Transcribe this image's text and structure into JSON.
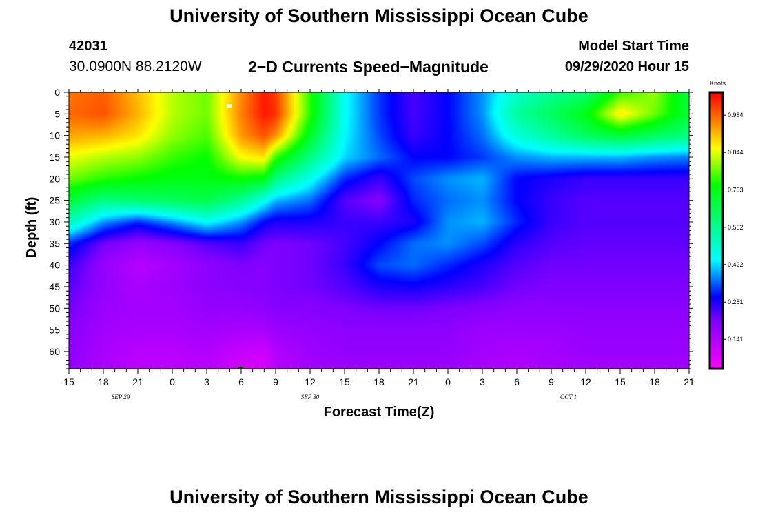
{
  "header": {
    "title": "University of Southern Mississippi Ocean Cube",
    "station_id": "42031",
    "coordinates": "30.0900N 88.2120W",
    "plot_title": "2−D Currents Speed−Magnitude",
    "start_label": "Model Start Time",
    "start_value": "09/29/2020 Hour 15"
  },
  "footer": {
    "title": "University of Southern Mississippi Ocean Cube"
  },
  "chart_data": {
    "type": "heatmap",
    "title": "2-D Currents Speed-Magnitude",
    "xlabel": "Forecast Time(Z)",
    "ylabel": "Depth (ft)",
    "x_hours_from_start": [
      0,
      54
    ],
    "x_ticks": [
      "15",
      "18",
      "21",
      "0",
      "3",
      "6",
      "9",
      "12",
      "15",
      "18",
      "21",
      "0",
      "3",
      "6",
      "9",
      "12",
      "15",
      "18",
      "21"
    ],
    "date_labels": [
      {
        "label": "SEP 29",
        "hour": 4.5
      },
      {
        "label": "SEP 30",
        "hour": 21
      },
      {
        "label": "OCT 1",
        "hour": 43.5
      }
    ],
    "y_range": [
      0,
      64
    ],
    "y_ticks": [
      0,
      5,
      10,
      15,
      20,
      25,
      30,
      35,
      40,
      45,
      50,
      55,
      60
    ],
    "colorbar": {
      "unit": "Knots",
      "range": [
        0.03,
        1.07
      ],
      "tick_values": [
        0.984,
        0.844,
        0.703,
        0.562,
        0.422,
        0.281,
        0.141
      ],
      "tick_labels": [
        "0.984",
        "0.844",
        "0.703",
        "0.562",
        "0.422",
        "0.281",
        "0.141"
      ],
      "stops": [
        {
          "v": 0.03,
          "color": "#ff00ff"
        },
        {
          "v": 0.21,
          "color": "#8000ff"
        },
        {
          "v": 0.3,
          "color": "#0000ff"
        },
        {
          "v": 0.44,
          "color": "#00ffff"
        },
        {
          "v": 0.58,
          "color": "#00ff80"
        },
        {
          "v": 0.72,
          "color": "#00ff00"
        },
        {
          "v": 0.86,
          "color": "#ffff00"
        },
        {
          "v": 0.96,
          "color": "#ff8000"
        },
        {
          "v": 1.07,
          "color": "#ff0000"
        }
      ]
    },
    "depth_levels": [
      0,
      5,
      10,
      15,
      20,
      25,
      30,
      35,
      40,
      45,
      50,
      55,
      60,
      64
    ],
    "time_hours": [
      0,
      3,
      6,
      9,
      12,
      15,
      17,
      18,
      21,
      24,
      27,
      30,
      33,
      36,
      39,
      42,
      45,
      48,
      51,
      54
    ],
    "speed_knots": [
      [
        0.97,
        0.99,
        0.91,
        0.82,
        0.78,
        0.95,
        1.05,
        1.02,
        0.74,
        0.45,
        0.33,
        0.25,
        0.3,
        0.38,
        0.5,
        0.56,
        0.6,
        0.75,
        0.8,
        0.65
      ],
      [
        0.98,
        1.0,
        0.92,
        0.82,
        0.78,
        0.96,
        1.05,
        1.03,
        0.74,
        0.45,
        0.33,
        0.25,
        0.3,
        0.38,
        0.55,
        0.62,
        0.7,
        0.88,
        0.78,
        0.66
      ],
      [
        0.93,
        0.92,
        0.88,
        0.8,
        0.76,
        0.94,
        1.0,
        0.95,
        0.68,
        0.44,
        0.34,
        0.26,
        0.3,
        0.36,
        0.48,
        0.55,
        0.62,
        0.66,
        0.62,
        0.58
      ],
      [
        0.85,
        0.82,
        0.8,
        0.75,
        0.72,
        0.86,
        0.88,
        0.75,
        0.58,
        0.42,
        0.36,
        0.3,
        0.3,
        0.33,
        0.38,
        0.4,
        0.4,
        0.4,
        0.38,
        0.37
      ],
      [
        0.78,
        0.74,
        0.72,
        0.7,
        0.7,
        0.72,
        0.7,
        0.58,
        0.46,
        0.32,
        0.26,
        0.34,
        0.38,
        0.4,
        0.3,
        0.28,
        0.26,
        0.26,
        0.26,
        0.26
      ],
      [
        0.66,
        0.58,
        0.6,
        0.62,
        0.64,
        0.56,
        0.46,
        0.4,
        0.36,
        0.24,
        0.2,
        0.32,
        0.36,
        0.38,
        0.3,
        0.26,
        0.24,
        0.24,
        0.24,
        0.24
      ],
      [
        0.52,
        0.38,
        0.32,
        0.38,
        0.45,
        0.38,
        0.3,
        0.28,
        0.28,
        0.26,
        0.26,
        0.28,
        0.38,
        0.4,
        0.32,
        0.26,
        0.24,
        0.24,
        0.24,
        0.24
      ],
      [
        0.32,
        0.22,
        0.18,
        0.2,
        0.24,
        0.26,
        0.22,
        0.21,
        0.22,
        0.25,
        0.3,
        0.36,
        0.38,
        0.34,
        0.27,
        0.24,
        0.23,
        0.23,
        0.23,
        0.23
      ],
      [
        0.26,
        0.18,
        0.13,
        0.16,
        0.19,
        0.21,
        0.2,
        0.21,
        0.22,
        0.26,
        0.34,
        0.36,
        0.32,
        0.28,
        0.24,
        0.22,
        0.22,
        0.22,
        0.22,
        0.22
      ],
      [
        0.24,
        0.18,
        0.15,
        0.17,
        0.19,
        0.2,
        0.2,
        0.21,
        0.22,
        0.24,
        0.28,
        0.29,
        0.27,
        0.25,
        0.22,
        0.21,
        0.21,
        0.21,
        0.21,
        0.21
      ],
      [
        0.22,
        0.17,
        0.16,
        0.16,
        0.18,
        0.18,
        0.19,
        0.2,
        0.2,
        0.21,
        0.22,
        0.22,
        0.21,
        0.2,
        0.19,
        0.19,
        0.19,
        0.19,
        0.19,
        0.19
      ],
      [
        0.2,
        0.16,
        0.15,
        0.15,
        0.16,
        0.15,
        0.15,
        0.17,
        0.18,
        0.19,
        0.19,
        0.19,
        0.19,
        0.17,
        0.17,
        0.17,
        0.18,
        0.18,
        0.18,
        0.18
      ],
      [
        0.19,
        0.15,
        0.13,
        0.13,
        0.14,
        0.11,
        0.1,
        0.14,
        0.17,
        0.18,
        0.18,
        0.18,
        0.18,
        0.16,
        0.15,
        0.16,
        0.17,
        0.17,
        0.17,
        0.17
      ],
      [
        0.18,
        0.15,
        0.12,
        0.12,
        0.13,
        0.09,
        0.08,
        0.13,
        0.16,
        0.17,
        0.17,
        0.17,
        0.17,
        0.15,
        0.14,
        0.15,
        0.16,
        0.16,
        0.16,
        0.16
      ]
    ]
  }
}
